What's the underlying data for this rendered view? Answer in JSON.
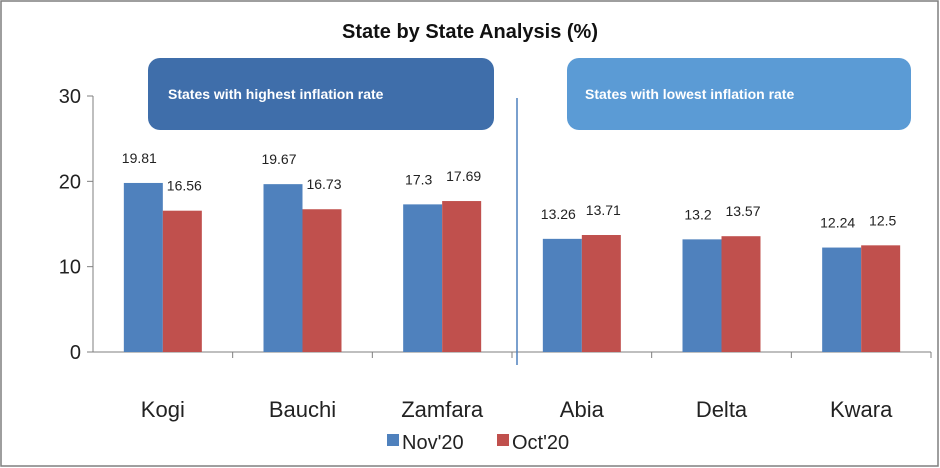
{
  "colors": {
    "nov": "#4f81bd",
    "oct": "#c0504d",
    "banner_high": "#3f6eaa",
    "banner_low": "#5b9bd5",
    "divider": "#4f81bd"
  },
  "chart_data": {
    "type": "bar",
    "title": "State by State Analysis (%)",
    "categories": [
      "Kogi",
      "Bauchi",
      "Zamfara",
      "Abia",
      "Delta",
      "Kwara"
    ],
    "series": [
      {
        "name": "Nov'20",
        "values": [
          19.81,
          19.67,
          17.3,
          13.26,
          13.2,
          12.24
        ],
        "labels": [
          "19.81",
          "19.67",
          "17.3",
          "13.26",
          "13.2",
          "12.24"
        ]
      },
      {
        "name": "Oct'20",
        "values": [
          16.56,
          16.73,
          17.69,
          13.71,
          13.57,
          12.5
        ],
        "labels": [
          "16.56",
          "16.73",
          "17.69",
          "13.71",
          "13.57",
          "12.5"
        ]
      }
    ],
    "ylim": [
      0,
      30
    ],
    "yticks": [
      "0",
      "10",
      "20",
      "30"
    ],
    "grid": false,
    "legend_position": "bottom",
    "annotations": {
      "highest": "States with highest inflation rate",
      "lowest": "States with lowest inflation rate"
    }
  }
}
